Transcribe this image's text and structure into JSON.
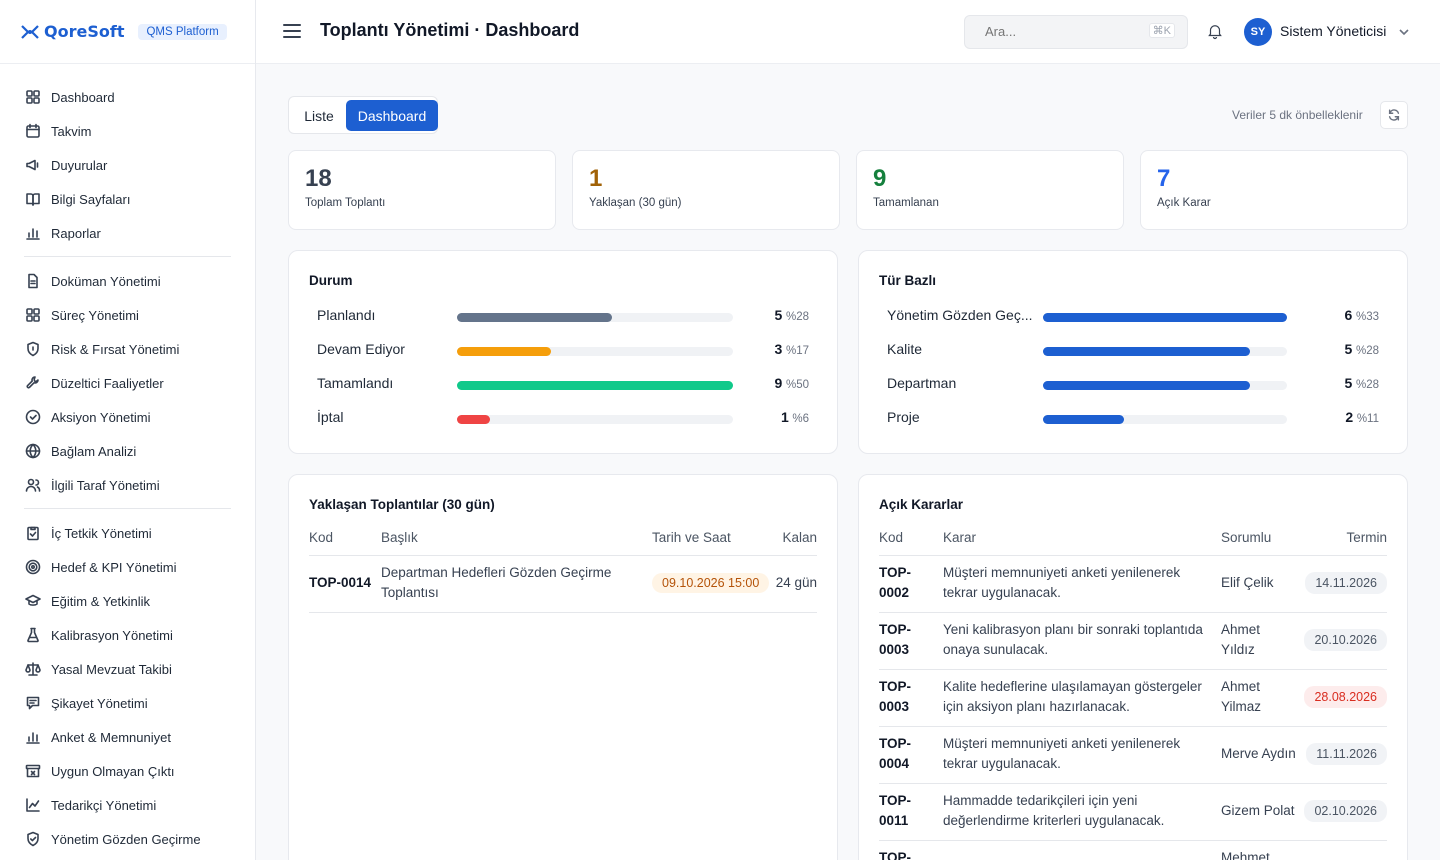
{
  "brand": {
    "name": "QoreSoft",
    "badge": "QMS Platform"
  },
  "nav_groups": [
    [
      {
        "label": "Dashboard",
        "icon": "grid-icon"
      },
      {
        "label": "Takvim",
        "icon": "calendar-icon"
      },
      {
        "label": "Duyurular",
        "icon": "megaphone-icon"
      },
      {
        "label": "Bilgi Sayfaları",
        "icon": "book-icon"
      },
      {
        "label": "Raporlar",
        "icon": "bar-chart-icon"
      }
    ],
    [
      {
        "label": "Doküman Yönetimi",
        "icon": "document-icon"
      },
      {
        "label": "Süreç Yönetimi",
        "icon": "grid-icon"
      },
      {
        "label": "Risk & Fırsat Yönetimi",
        "icon": "shield-icon"
      },
      {
        "label": "Düzeltici Faaliyetler",
        "icon": "wrench-icon"
      },
      {
        "label": "Aksiyon Yönetimi",
        "icon": "check-circle-icon"
      },
      {
        "label": "Bağlam Analizi",
        "icon": "globe-icon"
      },
      {
        "label": "İlgili Taraf Yönetimi",
        "icon": "users-icon"
      }
    ],
    [
      {
        "label": "İç Tetkik Yönetimi",
        "icon": "clipboard-check-icon"
      },
      {
        "label": "Hedef & KPI Yönetimi",
        "icon": "target-icon"
      },
      {
        "label": "Eğitim & Yetkinlik",
        "icon": "graduation-cap-icon"
      },
      {
        "label": "Kalibrasyon Yönetimi",
        "icon": "flask-icon"
      },
      {
        "label": "Yasal Mevzuat Takibi",
        "icon": "scale-icon"
      },
      {
        "label": "Şikayet Yönetimi",
        "icon": "message-icon"
      },
      {
        "label": "Anket & Memnuniyet",
        "icon": "bar-chart-icon"
      },
      {
        "label": "Uygun Olmayan Çıktı",
        "icon": "archive-x-icon"
      },
      {
        "label": "Tedarikçi Yönetimi",
        "icon": "line-chart-icon"
      },
      {
        "label": "Yönetim Gözden Geçirme",
        "icon": "shield-check-icon"
      }
    ]
  ],
  "header": {
    "title": "Toplantı Yönetimi · Dashboard",
    "search_placeholder": "Ara...",
    "search_shortcut": "⌘K",
    "user_initials": "SY",
    "user_name": "Sistem Yöneticisi"
  },
  "toolbar": {
    "tabs": [
      "Liste",
      "Dashboard"
    ],
    "active_tab": "Dashboard",
    "cache_note": "Veriler 5 dk önbelleklenir"
  },
  "stats": [
    {
      "value": "18",
      "label": "Toplam Toplantı",
      "color": "#374151"
    },
    {
      "value": "1",
      "label": "Yaklaşan (30 gün)",
      "color": "#a16207"
    },
    {
      "value": "9",
      "label": "Tamamlanan",
      "color": "#15803d"
    },
    {
      "value": "7",
      "label": "Açık Karar",
      "color": "#2563eb"
    }
  ],
  "status_panel": {
    "title": "Durum",
    "rows": [
      {
        "label": "Planlandı",
        "count": "5",
        "pct": "%28",
        "fraction": 0.28,
        "color": "#64748b"
      },
      {
        "label": "Devam Ediyor",
        "count": "3",
        "pct": "%17",
        "fraction": 0.17,
        "color": "#f59e0b"
      },
      {
        "label": "Tamamlandı",
        "count": "9",
        "pct": "%50",
        "fraction": 0.5,
        "color": "#10c98a"
      },
      {
        "label": "İptal",
        "count": "1",
        "pct": "%6",
        "fraction": 0.06,
        "color": "#ef4444"
      }
    ]
  },
  "type_panel": {
    "title": "Tür Bazlı",
    "rows": [
      {
        "label": "Yönetim Gözden Geç...",
        "count": "6",
        "pct": "%33",
        "fraction": 0.33,
        "color": "#1d5fd1"
      },
      {
        "label": "Kalite",
        "count": "5",
        "pct": "%28",
        "fraction": 0.28,
        "color": "#1d5fd1"
      },
      {
        "label": "Departman",
        "count": "5",
        "pct": "%28",
        "fraction": 0.28,
        "color": "#1d5fd1"
      },
      {
        "label": "Proje",
        "count": "2",
        "pct": "%11",
        "fraction": 0.11,
        "color": "#1d5fd1"
      }
    ]
  },
  "upcoming": {
    "title": "Yaklaşan Toplantılar (30 gün)",
    "columns": [
      "Kod",
      "Başlık",
      "Tarih ve Saat",
      "Kalan"
    ],
    "rows": [
      {
        "code": "TOP-0014",
        "title": "Departman Hedefleri Gözden Geçirme Toplantısı",
        "datetime": "09.10.2026 15:00",
        "remaining": "24 gün"
      }
    ]
  },
  "open_decisions": {
    "title": "Açık Kararlar",
    "columns": [
      "Kod",
      "Karar",
      "Sorumlu",
      "Termin"
    ],
    "rows": [
      {
        "code": "TOP-0002",
        "decision": "Müşteri memnuniyeti anketi yenilenerek tekrar uygulanacak.",
        "owner": "Elif Çelik",
        "due": "14.11.2026",
        "overdue": false
      },
      {
        "code": "TOP-0003",
        "decision": "Yeni kalibrasyon planı bir sonraki toplantıda onaya sunulacak.",
        "owner": "Ahmet Yıldız",
        "due": "20.10.2026",
        "overdue": false
      },
      {
        "code": "TOP-0003",
        "decision": "Kalite hedeflerine ulaşılamayan göstergeler için aksiyon planı hazırlanacak.",
        "owner": "Ahmet Yilmaz",
        "due": "28.08.2026",
        "overdue": true
      },
      {
        "code": "TOP-0004",
        "decision": "Müşteri memnuniyeti anketi yenilenerek tekrar uygulanacak.",
        "owner": "Merve Aydın",
        "due": "11.11.2026",
        "overdue": false
      },
      {
        "code": "TOP-0011",
        "decision": "Hammadde tedarikçileri için yeni değerlendirme kriterleri uygulanacak.",
        "owner": "Gizem Polat",
        "due": "02.10.2026",
        "overdue": false
      },
      {
        "code": "TOP-",
        "decision": "",
        "owner": "Mehmet",
        "due": "",
        "overdue": false
      }
    ]
  }
}
